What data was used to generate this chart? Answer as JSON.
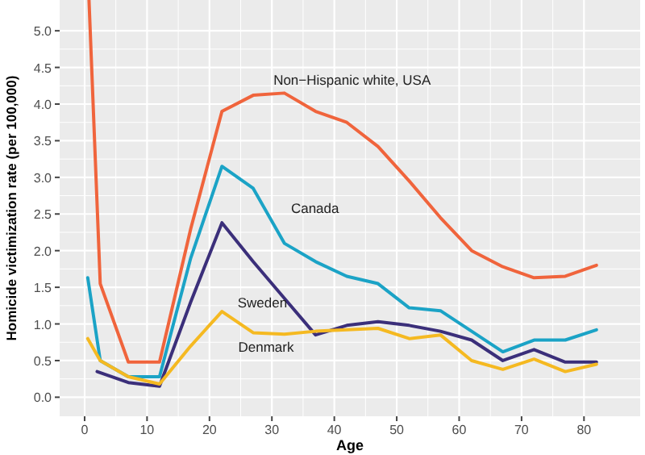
{
  "chart_data": {
    "type": "line",
    "xlabel": "Age",
    "ylabel": "Homicide victimization rate (per 100,000)",
    "xlim": [
      -4,
      89
    ],
    "ylim": [
      -0.26,
      5.42
    ],
    "xticks": [
      0,
      10,
      20,
      30,
      40,
      50,
      60,
      70,
      80
    ],
    "yticks": [
      {
        "value": 0,
        "label": "0.0"
      },
      0.5,
      {
        "value": 1,
        "label": "1.0"
      },
      1.5,
      {
        "value": 2,
        "label": "2.0"
      },
      2.5,
      {
        "value": 3,
        "label": "3.0"
      },
      3.5,
      {
        "value": 4,
        "label": "4.0"
      },
      4.5,
      {
        "value": 5,
        "label": "5.0"
      }
    ],
    "grid": true,
    "series": [
      {
        "name": "Non−Hispanic white, USA",
        "color": "#f0643c",
        "x": [
          0.7,
          2.5,
          7,
          12,
          17,
          22,
          27,
          32,
          37,
          42,
          47,
          52,
          57,
          62,
          67,
          72,
          77,
          82
        ],
        "values": [
          5.42,
          1.55,
          0.48,
          0.48,
          2.3,
          3.9,
          4.12,
          4.15,
          3.9,
          3.75,
          3.42,
          2.95,
          2.45,
          2.0,
          1.78,
          1.63,
          1.65,
          1.8
        ]
      },
      {
        "name": "Canada",
        "color": "#1ba3c6",
        "x": [
          0.5,
          2.5,
          7,
          12,
          17,
          22,
          27,
          32,
          37,
          42,
          47,
          52,
          57,
          62,
          67,
          72,
          77,
          82
        ],
        "values": [
          1.63,
          0.5,
          0.28,
          0.28,
          1.9,
          3.15,
          2.85,
          2.1,
          1.85,
          1.65,
          1.55,
          1.22,
          1.18,
          0.9,
          0.62,
          0.78,
          0.78,
          0.92
        ]
      },
      {
        "name": "Sweden",
        "color": "#3b2f7a",
        "x": [
          2,
          7,
          12,
          17,
          22,
          27,
          32,
          37,
          42,
          47,
          52,
          57,
          62,
          67,
          72,
          77,
          82
        ],
        "values": [
          0.35,
          0.2,
          0.15,
          1.3,
          2.38,
          1.85,
          1.35,
          0.85,
          0.98,
          1.03,
          0.98,
          0.9,
          0.78,
          0.5,
          0.65,
          0.48,
          0.48
        ]
      },
      {
        "name": "Denmark",
        "color": "#f5b921",
        "x": [
          0.5,
          2.5,
          7,
          12,
          17,
          22,
          27,
          32,
          37,
          42,
          47,
          52,
          57,
          62,
          67,
          72,
          77,
          82
        ],
        "values": [
          0.8,
          0.5,
          0.28,
          0.18,
          0.7,
          1.17,
          0.88,
          0.86,
          0.9,
          0.92,
          0.94,
          0.8,
          0.85,
          0.5,
          0.38,
          0.52,
          0.35,
          0.45
        ]
      }
    ]
  }
}
